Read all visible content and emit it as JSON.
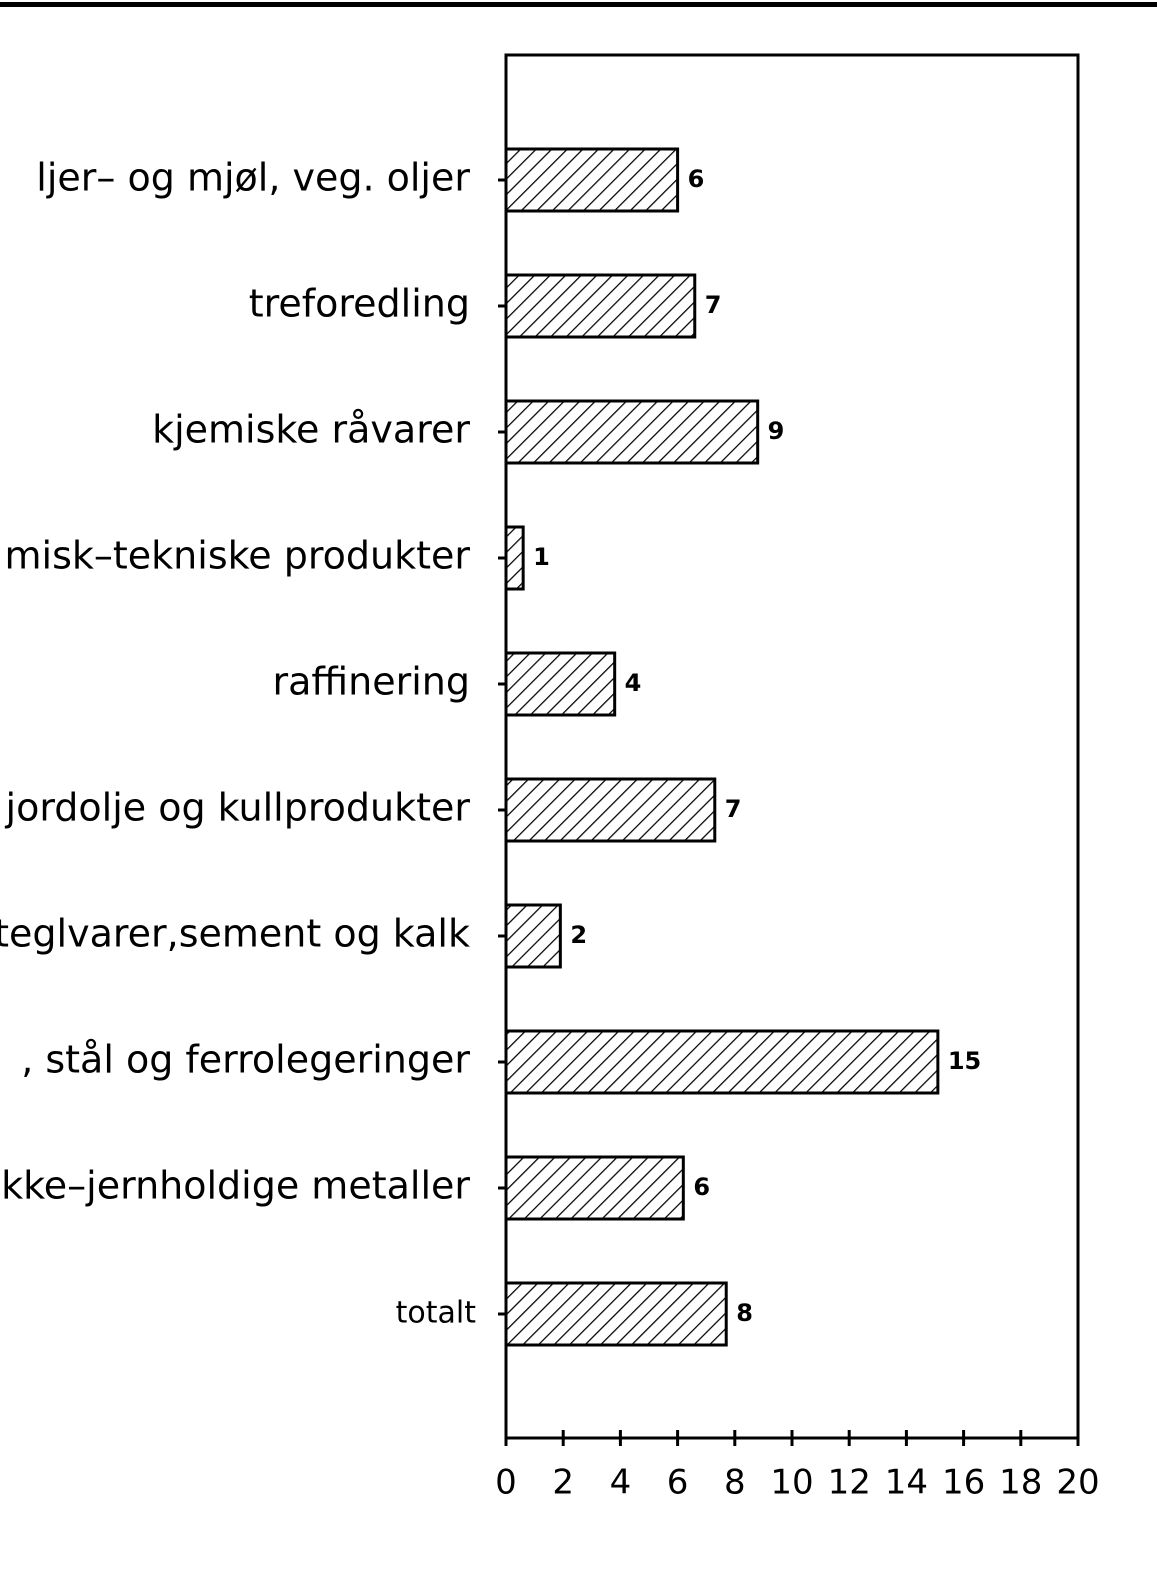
{
  "chart_data": {
    "type": "barh",
    "categories": [
      "ljer– og mjøl, veg. oljer",
      "treforedling",
      "kjemiske råvarer",
      "misk–tekniske produkter",
      "raffinering",
      "jordolje og kullprodukter",
      "teglvarer,sement og kalk",
      ", stål og ferrolegeringer",
      "kke–jernholdige metaller",
      "totalt"
    ],
    "values": [
      6.0,
      6.6,
      8.8,
      0.6,
      3.8,
      7.3,
      1.9,
      15.1,
      6.2,
      7.7
    ],
    "value_labels": [
      "6",
      "7",
      "9",
      "1",
      "4",
      "7",
      "2",
      "15",
      "6",
      "8"
    ],
    "xlim": [
      0,
      20
    ],
    "xticks": [
      0,
      2,
      4,
      6,
      8,
      10,
      12,
      14,
      16,
      18,
      20
    ],
    "color": "#000000",
    "grid": false
  }
}
